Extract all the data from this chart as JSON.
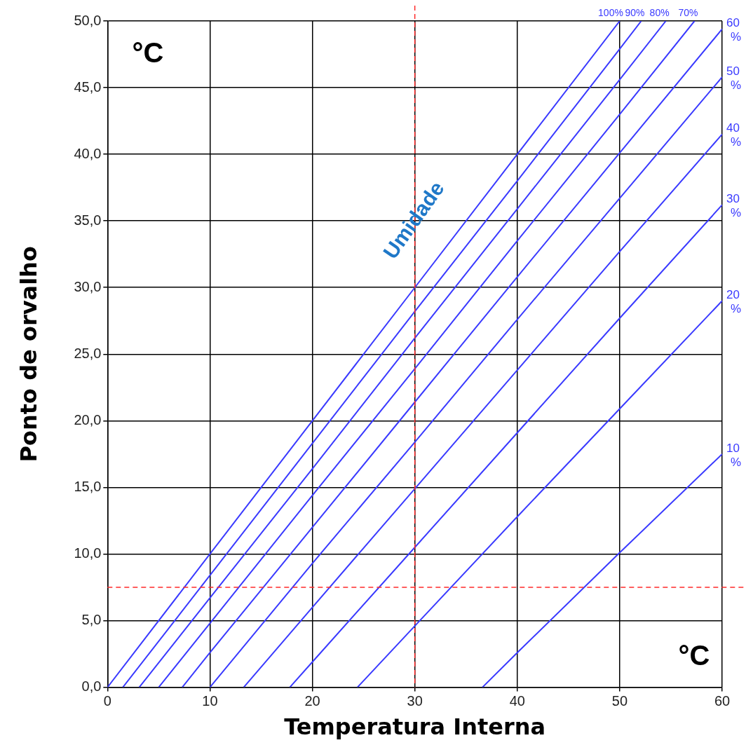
{
  "chart_data": {
    "type": "line",
    "xlabel": "Temperatura Interna",
    "ylabel": "Ponto de orvalho",
    "xlim": [
      0,
      60
    ],
    "ylim": [
      0,
      50
    ],
    "xticks": [
      0,
      10,
      20,
      30,
      40,
      50,
      60
    ],
    "yticks": [
      {
        "value": 0,
        "label": "0,0"
      },
      {
        "value": 5,
        "label": "5,0"
      },
      {
        "value": 10,
        "label": "10,0"
      },
      {
        "value": 15,
        "label": "15,0"
      },
      {
        "value": 20,
        "label": "20,0"
      },
      {
        "value": 25,
        "label": "25,0"
      },
      {
        "value": 30,
        "label": "30,0"
      },
      {
        "value": 35,
        "label": "35,0"
      },
      {
        "value": 40,
        "label": "40,0"
      },
      {
        "value": 45,
        "label": "45,0"
      },
      {
        "value": 50,
        "label": "50,0"
      }
    ],
    "grid": true,
    "legend": false,
    "marker": "none",
    "line_style": "solid",
    "series": [
      {
        "name": "100%",
        "color": "#3a3aff",
        "x": [
          0,
          10,
          20,
          30,
          40,
          50
        ],
        "values": [
          0,
          10,
          20,
          30,
          40,
          50
        ]
      },
      {
        "name": "90%",
        "color": "#3a3aff",
        "x": [
          1.5,
          10,
          20,
          30,
          40,
          50,
          52.1
        ],
        "values": [
          0,
          8.4,
          18.3,
          28.2,
          38,
          47.9,
          50
        ]
      },
      {
        "name": "80%",
        "color": "#3a3aff",
        "x": [
          3.1,
          10,
          20,
          30,
          40,
          50,
          54.5
        ],
        "values": [
          0,
          6.7,
          16.4,
          26.2,
          35.9,
          45.6,
          50
        ]
      },
      {
        "name": "70%",
        "color": "#3a3aff",
        "x": [
          5,
          10,
          20,
          30,
          40,
          50,
          57.3
        ],
        "values": [
          0,
          4.8,
          14.4,
          23.9,
          33.5,
          43,
          50
        ]
      },
      {
        "name": "60 %",
        "color": "#3a3aff",
        "x": [
          7.3,
          10,
          20,
          30,
          40,
          50,
          60
        ],
        "values": [
          0,
          2.6,
          12,
          21.4,
          30.8,
          40.1,
          49.4
        ]
      },
      {
        "name": "50 %",
        "color": "#3a3aff",
        "x": [
          10,
          20,
          30,
          40,
          50,
          60
        ],
        "values": [
          0,
          9.3,
          18.4,
          27.6,
          36.7,
          45.8
        ]
      },
      {
        "name": "40 %",
        "color": "#3a3aff",
        "x": [
          13.3,
          20,
          30,
          40,
          50,
          60
        ],
        "values": [
          0,
          6,
          14.9,
          23.8,
          32.7,
          41.5
        ]
      },
      {
        "name": "30 %",
        "color": "#3a3aff",
        "x": [
          17.8,
          20,
          30,
          40,
          50,
          60
        ],
        "values": [
          0,
          1.9,
          10.5,
          19.1,
          27.7,
          36.2
        ]
      },
      {
        "name": "20 %",
        "color": "#3a3aff",
        "x": [
          24.4,
          30,
          40,
          50,
          60
        ],
        "values": [
          0,
          4.6,
          12.8,
          20.9,
          29
        ]
      },
      {
        "name": "10 %",
        "color": "#3a3aff",
        "x": [
          36.6,
          40,
          50,
          60
        ],
        "values": [
          0,
          2.6,
          10.1,
          17.5
        ]
      }
    ],
    "ref_lines": [
      {
        "axis": "x",
        "value": 30,
        "color": "#ff2a2a",
        "line_style": "dashed"
      },
      {
        "axis": "y",
        "value": 7.5,
        "color": "#ff2a2a",
        "line_style": "dashed"
      }
    ],
    "annotations": [
      "°C",
      "°C",
      "Umidade"
    ]
  }
}
